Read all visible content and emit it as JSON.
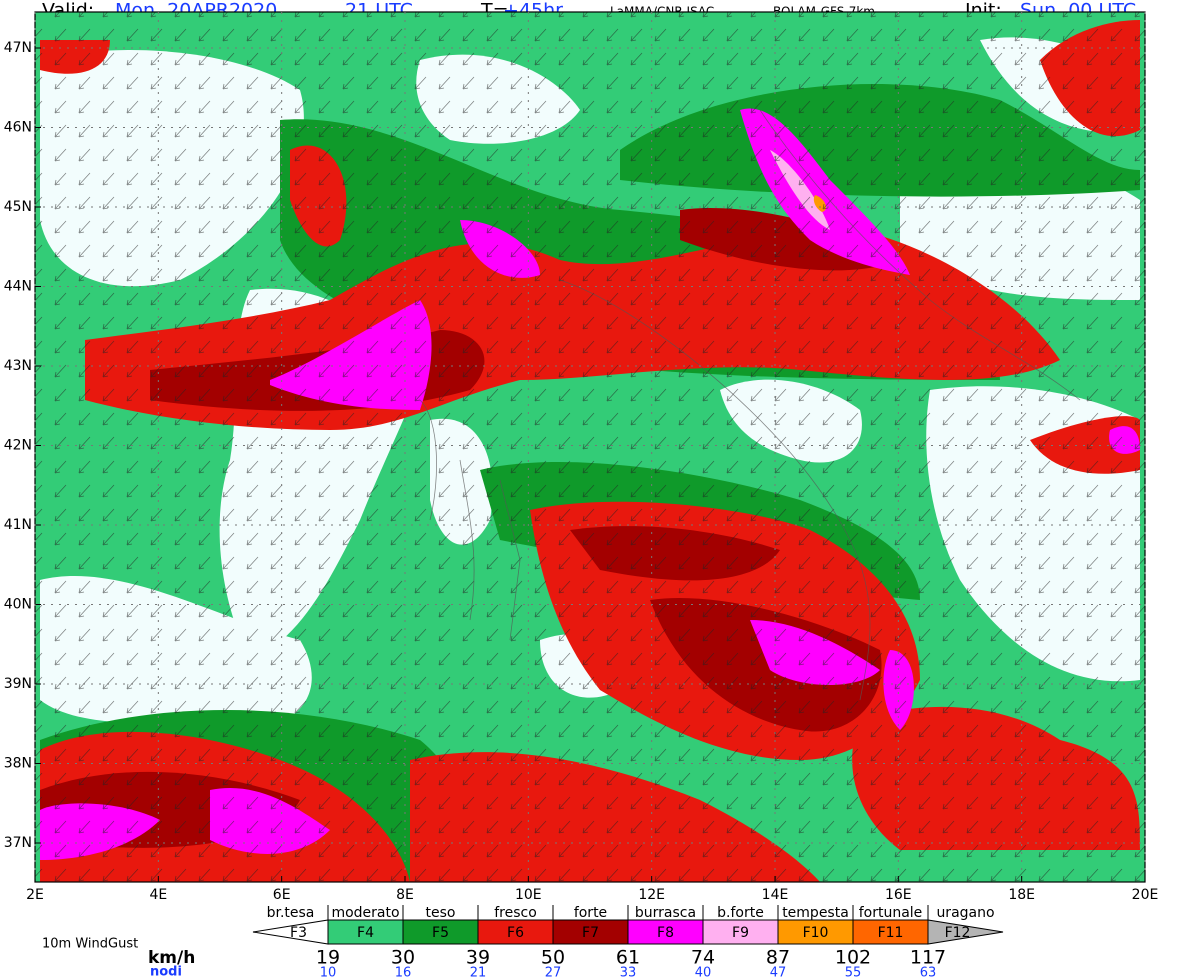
{
  "header": {
    "valid_label": "Valid:",
    "valid_date": "Mon, 20APR2020",
    "valid_time": "21 UTC",
    "lead_label": "T=",
    "lead_value": "+45hr",
    "source": "LaMMA/CNR-ISAC",
    "model": "BOLAM-GFS-7km",
    "init_label": "Init:",
    "init_value": "Sun, 00 UTC"
  },
  "map": {
    "lat_labels": [
      "47N",
      "46N",
      "45N",
      "44N",
      "43N",
      "42N",
      "41N",
      "40N",
      "39N",
      "38N",
      "37N"
    ],
    "lon_labels": [
      "2E",
      "4E",
      "6E",
      "8E",
      "10E",
      "12E",
      "14E",
      "16E",
      "18E",
      "20E"
    ]
  },
  "legend": {
    "title": "10m WindGust",
    "unit_kmh": "km/h",
    "unit_knots": "nodi",
    "classes": [
      {
        "name": "br.tesa",
        "force": "F3",
        "color": "#ffffff"
      },
      {
        "name": "moderato",
        "force": "F4",
        "color": "#33cc77"
      },
      {
        "name": "teso",
        "force": "F5",
        "color": "#0f9a2a"
      },
      {
        "name": "fresco",
        "force": "F6",
        "color": "#e8180e"
      },
      {
        "name": "forte",
        "force": "F7",
        "color": "#a30000"
      },
      {
        "name": "burrasca",
        "force": "F8",
        "color": "#ff00ff"
      },
      {
        "name": "b.forte",
        "force": "F9",
        "color": "#ffb0f0"
      },
      {
        "name": "tempesta",
        "force": "F10",
        "color": "#ff9900"
      },
      {
        "name": "fortunale",
        "force": "F11",
        "color": "#ff6600"
      },
      {
        "name": "uragano",
        "force": "F12",
        "color": "#b4b4b4"
      }
    ],
    "kmh": [
      "19",
      "30",
      "39",
      "50",
      "61",
      "74",
      "87",
      "102",
      "117"
    ],
    "knots": [
      "10",
      "16",
      "21",
      "27",
      "33",
      "40",
      "47",
      "55",
      "63"
    ]
  }
}
